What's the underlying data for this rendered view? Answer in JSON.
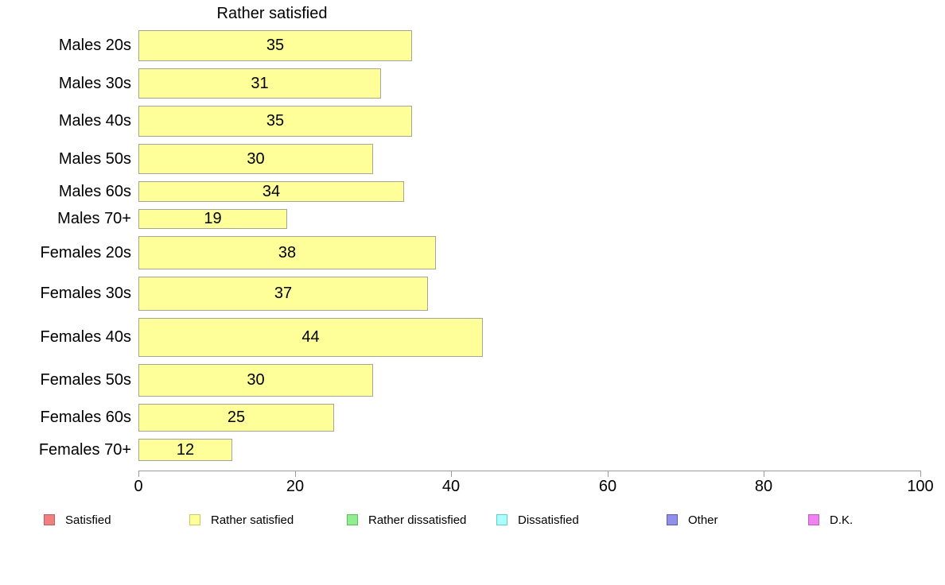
{
  "chart_data": {
    "type": "bar",
    "orientation": "horizontal",
    "title": "Rather satisfied",
    "categories": [
      "Males 20s",
      "Males 30s",
      "Males 40s",
      "Males 50s",
      "Males 60s",
      "Males 70+",
      "Females 20s",
      "Females 30s",
      "Females 40s",
      "Females 50s",
      "Females 60s",
      "Females 70+"
    ],
    "values": [
      35,
      31,
      35,
      30,
      34,
      19,
      38,
      37,
      44,
      30,
      25,
      12
    ],
    "bar_thickness_px": [
      39,
      38,
      39,
      38,
      26,
      25,
      42,
      43,
      49,
      41,
      35,
      28
    ],
    "xlim": [
      0,
      100
    ],
    "xticks": [
      "0",
      "20",
      "40",
      "60",
      "80",
      "100"
    ],
    "xtick_values": [
      0,
      20,
      40,
      60,
      80,
      100
    ],
    "grid": false,
    "bar_color": "#FFFF99",
    "bar_border_color": "#A6A696",
    "legend_position": "bottom",
    "legend": [
      {
        "label": "Satisfied",
        "fill": "#F08080",
        "border": "#C05E5E"
      },
      {
        "label": "Rather satisfied",
        "fill": "#FFFF99",
        "border": "#C9C96B"
      },
      {
        "label": "Rather dissatisfied",
        "fill": "#90EE90",
        "border": "#5DBD5D"
      },
      {
        "label": "Dissatisfied",
        "fill": "#AAFFFF",
        "border": "#5FCFCF"
      },
      {
        "label": "Other",
        "fill": "#9090E8",
        "border": "#5A5AC0"
      },
      {
        "label": "D.K.",
        "fill": "#EE82EE",
        "border": "#C25AC2"
      }
    ]
  }
}
